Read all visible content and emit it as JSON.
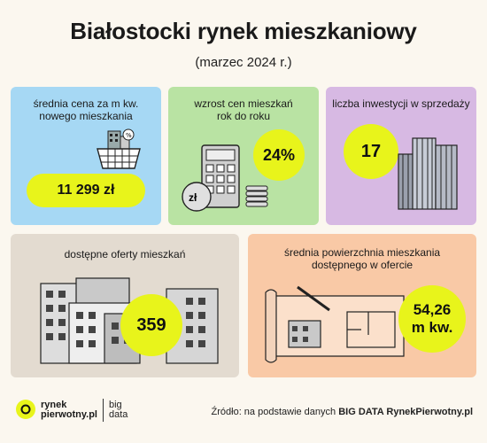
{
  "header": {
    "title": "Białostocki rynek mieszkaniowy",
    "subtitle": "(marzec 2024 r.)"
  },
  "cards": [
    {
      "label_1": "średnia cena za m kw.",
      "label_2": "nowego mieszkania",
      "value": "11 299 zł",
      "color": "#a6d8f4",
      "icon": "house-basket-icon"
    },
    {
      "label_1": "wzrost cen mieszkań",
      "label_2": "rok do roku",
      "value": "24%",
      "color": "#b9e3a3",
      "icon": "calculator-coins-icon"
    },
    {
      "label_1": "liczba inwestycji w sprzedaży",
      "value": "17",
      "color": "#d7b9e3",
      "icon": "skyscrapers-icon"
    },
    {
      "label_1": "dostępne oferty mieszkań",
      "value": "359",
      "color": "#e3dbd0",
      "icon": "apartment-blocks-icon"
    },
    {
      "label_1": "średnia powierzchnia mieszkania",
      "label_2": "dostępnego w ofercie",
      "value_1": "54,26",
      "value_2": "m kw.",
      "color": "#f9c9a6",
      "icon": "blueprint-icon"
    }
  ],
  "footer": {
    "brand_1": "rynek",
    "brand_2": "pierwotny.pl",
    "bigdata_1": "big",
    "bigdata_2": "data",
    "source_prefix": "Źródło: na podstawie danych ",
    "source_bold": "BIG DATA RynekPierwotny.pl"
  },
  "colors": {
    "accent": "#e8f41b",
    "background": "#fbf7ef"
  }
}
